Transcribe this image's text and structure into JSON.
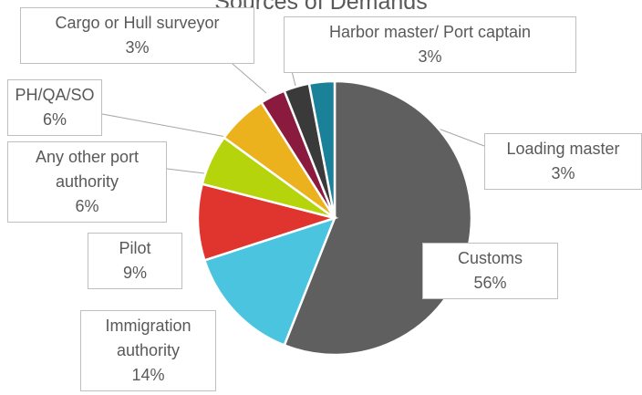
{
  "chart_data": {
    "type": "pie",
    "title": "Sources of Demands",
    "categories": [
      "Customs",
      "Immigration authority",
      "Pilot",
      "Any other port authority",
      "PH/QA/SO",
      "Cargo or Hull surveyor",
      "Harbor master/ Port captain",
      "Loading master"
    ],
    "values": [
      56,
      14,
      9,
      6,
      6,
      3,
      3,
      3
    ],
    "value_labels": [
      "56%",
      "14%",
      "9%",
      "6%",
      "6%",
      "3%",
      "3%",
      "3%"
    ],
    "colors": [
      "#5f5f5f",
      "#4bc4e0",
      "#e0342f",
      "#b5d40c",
      "#ecb21e",
      "#8b1a3f",
      "#3a3a3a",
      "#1a8199"
    ]
  }
}
